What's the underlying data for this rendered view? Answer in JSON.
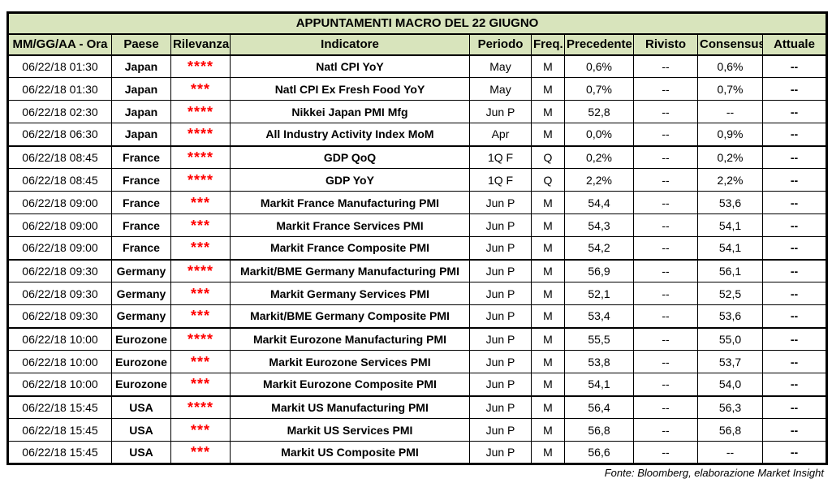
{
  "title": "APPUNTAMENTI MACRO DEL 22 GIUGNO",
  "columns": [
    "MM/GG/AA - Ora",
    "Paese",
    "Rilevanza",
    "Indicatore",
    "Periodo",
    "Freq.",
    "Precedente",
    "Rivisto",
    "Consensus",
    "Attuale"
  ],
  "rows": [
    {
      "datetime": "06/22/18 01:30",
      "country": "Japan",
      "stars": "****",
      "indicator": "Natl CPI YoY",
      "period": "May",
      "freq": "M",
      "previous": "0,6%",
      "revised": "--",
      "consensus": "0,6%",
      "actual": "--",
      "group_start": false
    },
    {
      "datetime": "06/22/18 01:30",
      "country": "Japan",
      "stars": "***",
      "indicator": "Natl CPI Ex Fresh Food YoY",
      "period": "May",
      "freq": "M",
      "previous": "0,7%",
      "revised": "--",
      "consensus": "0,7%",
      "actual": "--",
      "group_start": false
    },
    {
      "datetime": "06/22/18 02:30",
      "country": "Japan",
      "stars": "****",
      "indicator": "Nikkei Japan PMI Mfg",
      "period": "Jun P",
      "freq": "M",
      "previous": "52,8",
      "revised": "--",
      "consensus": "--",
      "actual": "--",
      "group_start": false
    },
    {
      "datetime": "06/22/18 06:30",
      "country": "Japan",
      "stars": "****",
      "indicator": "All Industry Activity Index MoM",
      "period": "Apr",
      "freq": "M",
      "previous": "0,0%",
      "revised": "--",
      "consensus": "0,9%",
      "actual": "--",
      "group_start": false
    },
    {
      "datetime": "06/22/18 08:45",
      "country": "France",
      "stars": "****",
      "indicator": "GDP QoQ",
      "period": "1Q F",
      "freq": "Q",
      "previous": "0,2%",
      "revised": "--",
      "consensus": "0,2%",
      "actual": "--",
      "group_start": true
    },
    {
      "datetime": "06/22/18 08:45",
      "country": "France",
      "stars": "****",
      "indicator": "GDP YoY",
      "period": "1Q F",
      "freq": "Q",
      "previous": "2,2%",
      "revised": "--",
      "consensus": "2,2%",
      "actual": "--",
      "group_start": false
    },
    {
      "datetime": "06/22/18 09:00",
      "country": "France",
      "stars": "***",
      "indicator": "Markit France Manufacturing PMI",
      "period": "Jun P",
      "freq": "M",
      "previous": "54,4",
      "revised": "--",
      "consensus": "53,6",
      "actual": "--",
      "group_start": false
    },
    {
      "datetime": "06/22/18 09:00",
      "country": "France",
      "stars": "***",
      "indicator": "Markit France Services PMI",
      "period": "Jun P",
      "freq": "M",
      "previous": "54,3",
      "revised": "--",
      "consensus": "54,1",
      "actual": "--",
      "group_start": false
    },
    {
      "datetime": "06/22/18 09:00",
      "country": "France",
      "stars": "***",
      "indicator": "Markit France Composite PMI",
      "period": "Jun P",
      "freq": "M",
      "previous": "54,2",
      "revised": "--",
      "consensus": "54,1",
      "actual": "--",
      "group_start": false
    },
    {
      "datetime": "06/22/18 09:30",
      "country": "Germany",
      "stars": "****",
      "indicator": "Markit/BME Germany Manufacturing PMI",
      "period": "Jun P",
      "freq": "M",
      "previous": "56,9",
      "revised": "--",
      "consensus": "56,1",
      "actual": "--",
      "group_start": true
    },
    {
      "datetime": "06/22/18 09:30",
      "country": "Germany",
      "stars": "***",
      "indicator": "Markit Germany Services PMI",
      "period": "Jun P",
      "freq": "M",
      "previous": "52,1",
      "revised": "--",
      "consensus": "52,5",
      "actual": "--",
      "group_start": false
    },
    {
      "datetime": "06/22/18 09:30",
      "country": "Germany",
      "stars": "***",
      "indicator": "Markit/BME Germany Composite PMI",
      "period": "Jun P",
      "freq": "M",
      "previous": "53,4",
      "revised": "--",
      "consensus": "53,6",
      "actual": "--",
      "group_start": false
    },
    {
      "datetime": "06/22/18 10:00",
      "country": "Eurozone",
      "stars": "****",
      "indicator": "Markit Eurozone Manufacturing PMI",
      "period": "Jun P",
      "freq": "M",
      "previous": "55,5",
      "revised": "--",
      "consensus": "55,0",
      "actual": "--",
      "group_start": true
    },
    {
      "datetime": "06/22/18 10:00",
      "country": "Eurozone",
      "stars": "***",
      "indicator": "Markit Eurozone Services PMI",
      "period": "Jun P",
      "freq": "M",
      "previous": "53,8",
      "revised": "--",
      "consensus": "53,7",
      "actual": "--",
      "group_start": false
    },
    {
      "datetime": "06/22/18 10:00",
      "country": "Eurozone",
      "stars": "***",
      "indicator": "Markit Eurozone Composite PMI",
      "period": "Jun P",
      "freq": "M",
      "previous": "54,1",
      "revised": "--",
      "consensus": "54,0",
      "actual": "--",
      "group_start": false
    },
    {
      "datetime": "06/22/18 15:45",
      "country": "USA",
      "stars": "****",
      "indicator": "Markit US Manufacturing PMI",
      "period": "Jun P",
      "freq": "M",
      "previous": "56,4",
      "revised": "--",
      "consensus": "56,3",
      "actual": "--",
      "group_start": true
    },
    {
      "datetime": "06/22/18 15:45",
      "country": "USA",
      "stars": "***",
      "indicator": "Markit US Services PMI",
      "period": "Jun P",
      "freq": "M",
      "previous": "56,8",
      "revised": "--",
      "consensus": "56,8",
      "actual": "--",
      "group_start": false
    },
    {
      "datetime": "06/22/18 15:45",
      "country": "USA",
      "stars": "***",
      "indicator": "Markit US Composite PMI",
      "period": "Jun P",
      "freq": "M",
      "previous": "56,6",
      "revised": "--",
      "consensus": "--",
      "actual": "--",
      "group_start": false
    }
  ],
  "footer": "Fonte: Bloomberg, elaborazione Market Insight",
  "colors": {
    "header_bg": "#d8e4bc",
    "star_red": "#ff0000",
    "border": "#000000"
  }
}
